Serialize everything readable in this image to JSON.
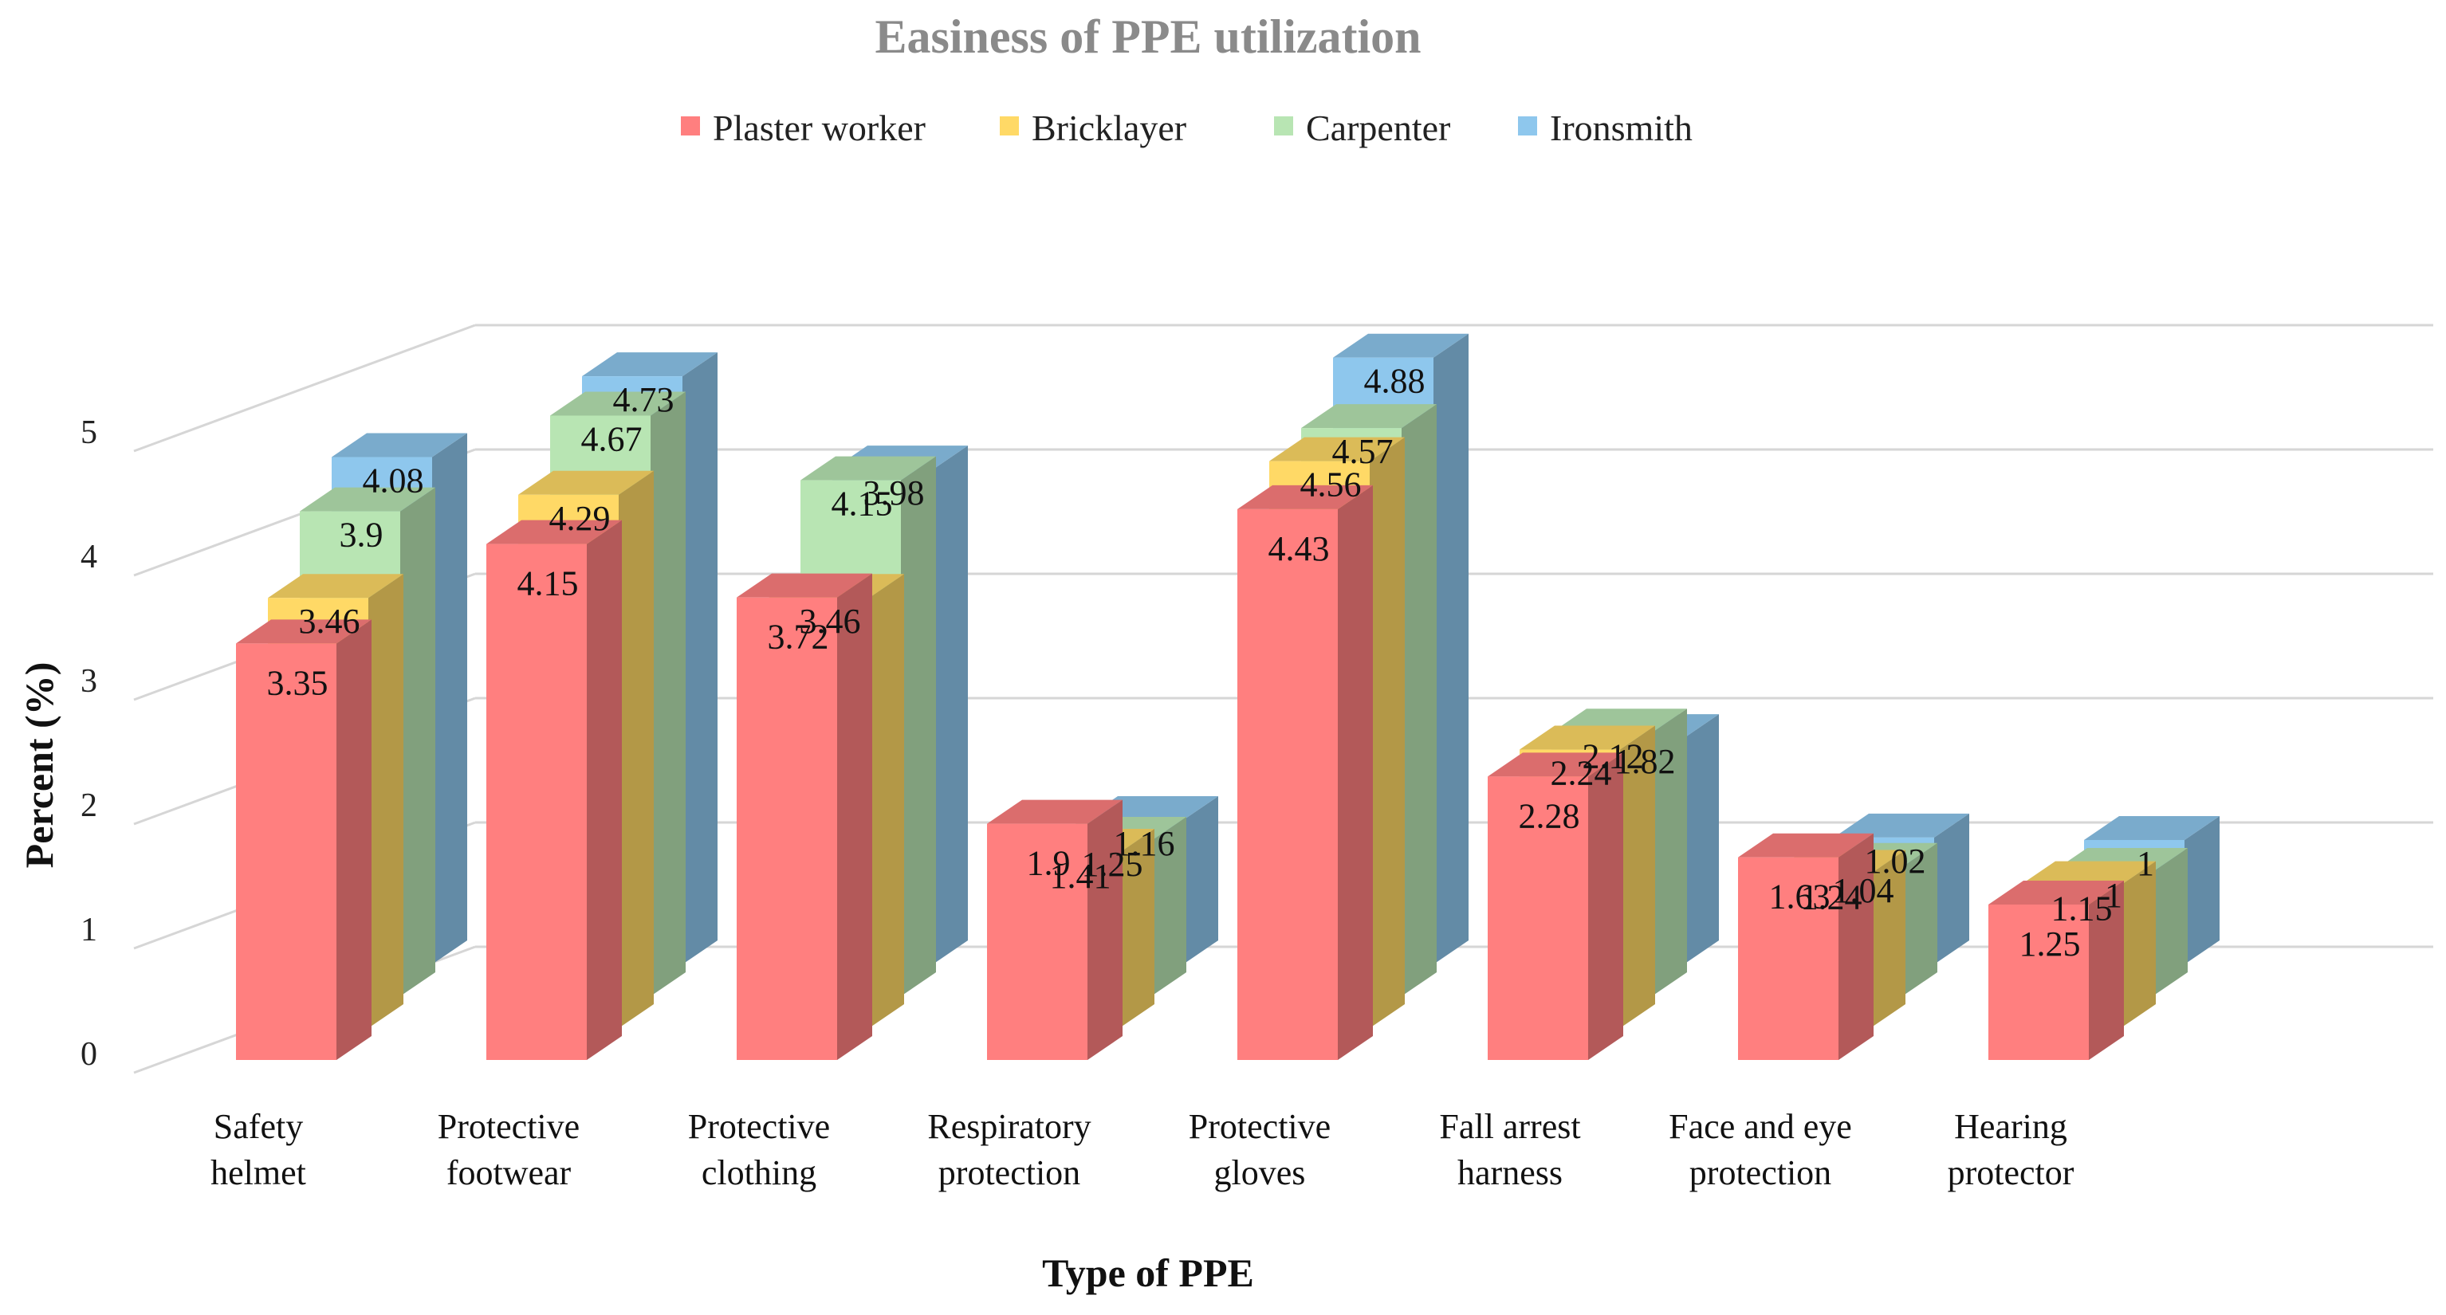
{
  "chart_data": {
    "type": "bar3d",
    "title": "Easiness of PPE utilization",
    "xlabel": "Type of PPE",
    "ylabel": "Percent  (%)",
    "ylim": [
      0,
      5
    ],
    "yticks": [
      "0",
      "1",
      "2",
      "3",
      "4",
      "5"
    ],
    "categories": [
      [
        "Safety",
        "helmet"
      ],
      [
        "Protective",
        "footwear"
      ],
      [
        "Protective",
        "clothing"
      ],
      [
        "Respiratory",
        "protection"
      ],
      [
        "Protective",
        "gloves"
      ],
      [
        "Fall arrest",
        "harness"
      ],
      [
        "Face and eye",
        "protection"
      ],
      [
        "Hearing",
        "protector"
      ]
    ],
    "series": [
      {
        "name": "Plaster worker",
        "color": "#ff7f7f",
        "values": [
          3.35,
          4.15,
          3.72,
          1.9,
          4.43,
          2.28,
          1.63,
          1.25
        ],
        "labels": [
          "3.35",
          "4.15",
          "3.72",
          "1.9",
          "4.43",
          "2.28",
          "1.63",
          "1.25"
        ]
      },
      {
        "name": "Bricklayer",
        "color": "#ffd966",
        "values": [
          3.46,
          4.29,
          3.46,
          1.41,
          4.56,
          2.24,
          1.24,
          1.15
        ],
        "labels": [
          "3.46",
          "4.29",
          "3.46",
          "1.41",
          "4.56",
          "2.24",
          "1.24",
          "1.15"
        ]
      },
      {
        "name": "Carpenter",
        "color": "#b8e5b3",
        "values": [
          3.9,
          4.67,
          4.15,
          1.25,
          4.57,
          2.12,
          1.04,
          1.0
        ],
        "labels": [
          "3.9",
          "4.67",
          "4.15",
          "1.25",
          "4.57",
          "2.12",
          "1.04",
          "1"
        ]
      },
      {
        "name": "Ironsmith",
        "color": "#8ec7ed",
        "values": [
          4.08,
          4.73,
          3.98,
          1.16,
          4.88,
          1.82,
          1.02,
          1.0
        ],
        "labels": [
          "4.08",
          "4.73",
          "3.98",
          "1.16",
          "4.88",
          "1.82",
          "1.02",
          "1"
        ]
      }
    ]
  }
}
